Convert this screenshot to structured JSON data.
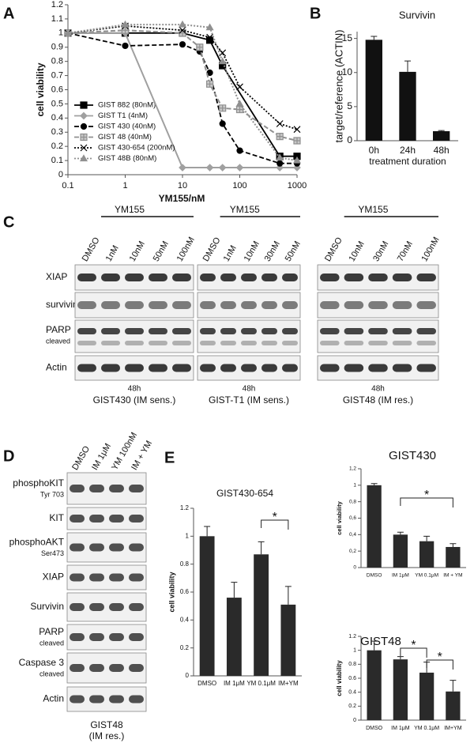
{
  "panel_labels": [
    "A",
    "B",
    "C",
    "D",
    "E"
  ],
  "chart_data": [
    {
      "type": "line",
      "xlabel": "YM155/nM",
      "ylabel": "cell viability",
      "xscale": "log",
      "xlim": [
        0.1,
        1000
      ],
      "xticks": [
        0.1,
        1,
        10,
        100,
        1000
      ],
      "ylim": [
        0,
        1.2
      ],
      "yticks": [
        0,
        0.1,
        0.2,
        0.3,
        0.4,
        0.5,
        0.6,
        0.7,
        0.8,
        0.9,
        1,
        1.1,
        1.2
      ],
      "legend": "lower left",
      "grid": false,
      "series": [
        {
          "name": "GIST 882 (80nM)",
          "color": "#000000",
          "dash": "solid",
          "marker": "square",
          "x": [
            0.1,
            1,
            10,
            30,
            50,
            500,
            1000
          ],
          "values": [
            1,
            1,
            1,
            0.95,
            0.77,
            0.13,
            0.13
          ]
        },
        {
          "name": "GIST T1 (4nM)",
          "color": "#a0a0a0",
          "dash": "solid",
          "marker": "diamond",
          "x": [
            0.1,
            1,
            10,
            30,
            50,
            100,
            500,
            1000
          ],
          "values": [
            1,
            1,
            0.05,
            0.05,
            0.05,
            0.05,
            0.05,
            0.05
          ]
        },
        {
          "name": "GIST 430 (40nM)",
          "color": "#000000",
          "dash": "dashed",
          "marker": "circle",
          "x": [
            0.1,
            1,
            10,
            20,
            30,
            50,
            100,
            500,
            1000
          ],
          "values": [
            1,
            0.91,
            0.92,
            0.87,
            0.72,
            0.36,
            0.17,
            0.08,
            0.08
          ]
        },
        {
          "name": "GIST 48 (40nM)",
          "color": "#909090",
          "dash": "dashed",
          "marker": "plus-square",
          "x": [
            0.1,
            1,
            10,
            20,
            30,
            50,
            100,
            500,
            1000
          ],
          "values": [
            1,
            1.02,
            1,
            0.9,
            0.64,
            0.47,
            0.46,
            0.27,
            0.24
          ]
        },
        {
          "name": "GIST 430-654 (200nM)",
          "color": "#000000",
          "dash": "dotted",
          "marker": "x",
          "x": [
            0.1,
            1,
            10,
            30,
            50,
            100,
            500,
            1000
          ],
          "values": [
            1,
            1.05,
            1.02,
            0.97,
            0.86,
            0.62,
            0.36,
            0.32
          ]
        },
        {
          "name": "GIST 48B (80nM)",
          "color": "#909090",
          "dash": "dotted",
          "marker": "triangle",
          "x": [
            0.1,
            1,
            10,
            30,
            50,
            100,
            500,
            1000
          ],
          "values": [
            1,
            1.06,
            1.06,
            1.04,
            0.8,
            0.5,
            0.12,
            0.1
          ]
        }
      ]
    },
    {
      "type": "bar",
      "title": "Survivin",
      "xlabel": "treatment duration",
      "ylabel": "target/reference (ACTIN)",
      "categories": [
        "0h",
        "24h",
        "48h"
      ],
      "values": [
        14.8,
        10.1,
        1.4
      ],
      "errors": [
        0.5,
        1.6,
        0.1
      ],
      "color": "#111111",
      "ylim": [
        0,
        16
      ],
      "yticks": [
        0,
        5,
        10,
        15
      ]
    },
    {
      "type": "bar",
      "title": "GIST430-654",
      "ylabel": "cell viability",
      "categories": [
        "DMSO",
        "IM 1μM",
        "YM 0.1μM",
        "IM+YM"
      ],
      "values": [
        1,
        0.56,
        0.87,
        0.51
      ],
      "errors": [
        0.07,
        0.11,
        0.09,
        0.13
      ],
      "color": "#2a2a2a",
      "ylim": [
        0,
        1.2
      ],
      "yticks": [
        0,
        0.2,
        0.4,
        0.6,
        0.8,
        1,
        1.2
      ],
      "annotations": [
        "*"
      ]
    },
    {
      "type": "bar",
      "title": "GIST430",
      "ylabel": "cell viability",
      "categories": [
        "DMSO",
        "IM 1μM",
        "YM 0.1μM",
        "IM + YM"
      ],
      "values": [
        1,
        0.4,
        0.32,
        0.25
      ],
      "errors": [
        0.02,
        0.03,
        0.06,
        0.04
      ],
      "color": "#2a2a2a",
      "ylim": [
        0,
        1.2
      ],
      "yticks": [
        0,
        {
          "value": 0.2,
          "label": "0,2"
        },
        {
          "value": 0.4,
          "label": "0,4"
        },
        {
          "value": 0.6,
          "label": "0,6"
        },
        {
          "value": 0.8,
          "label": "0,8"
        },
        1,
        {
          "value": 1.2,
          "label": "1,2"
        }
      ],
      "annotations": [
        "*"
      ]
    },
    {
      "type": "bar",
      "title": "GIST48",
      "ylabel": "cell viability",
      "categories": [
        "DMSO",
        "IM 1μM",
        "YM 0.1μM",
        "IM+YM"
      ],
      "values": [
        1,
        0.87,
        0.68,
        0.41
      ],
      "errors": [
        0.13,
        0.04,
        0.15,
        0.16
      ],
      "color": "#2a2a2a",
      "ylim": [
        0,
        1.2
      ],
      "yticks": [
        0,
        0.2,
        0.4,
        0.6,
        0.8,
        1,
        1.2
      ],
      "annotations": [
        "*",
        "*"
      ]
    }
  ],
  "blots": {
    "C": {
      "rows": [
        {
          "label": "XIAP"
        },
        {
          "label": "survivin"
        },
        {
          "label": "PARP",
          "sublabel": "cleaved"
        },
        {
          "label": "Actin"
        }
      ],
      "groups": [
        {
          "header": "YM155",
          "lanes": [
            "DMSO",
            "1nM",
            "10nM",
            "50nM",
            "100nM"
          ],
          "time": "48h",
          "caption": "GIST430 (IM sens.)"
        },
        {
          "header": "YM155",
          "lanes": [
            "DMSO",
            "1nM",
            "10nM",
            "30nM",
            "50nM"
          ],
          "time": "48h",
          "caption": "GIST-T1 (IM sens.)"
        },
        {
          "header": "YM155",
          "lanes": [
            "DMSO",
            "10nM",
            "30nM",
            "70nM",
            "100nM"
          ],
          "time": "48h",
          "caption": "GIST48 (IM res.)"
        }
      ]
    },
    "D": {
      "lanes": [
        "DMSO",
        "IM 1μM",
        "YM 100nM",
        "IM + YM"
      ],
      "rows": [
        {
          "label": "phosphoKIT",
          "sublabel": "Tyr 703"
        },
        {
          "label": "KIT"
        },
        {
          "label": "phosphoAKT",
          "sublabel": "Ser473"
        },
        {
          "label": "XIAP"
        },
        {
          "label": "Survivin"
        },
        {
          "label": "PARP",
          "sublabel": "cleaved"
        },
        {
          "label": "Caspase 3",
          "sublabel": "cleaved"
        },
        {
          "label": "Actin"
        }
      ],
      "caption": [
        "GIST48",
        "(IM res.)"
      ]
    }
  }
}
